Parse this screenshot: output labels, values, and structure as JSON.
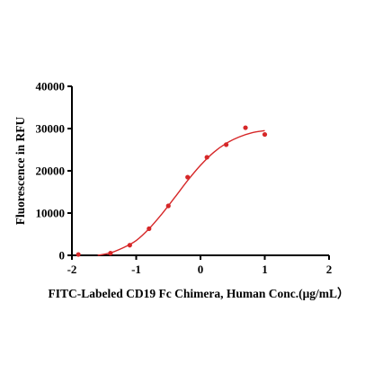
{
  "chart_data": {
    "type": "scatter",
    "title": "",
    "xlabel": "FITC-Labeled CD19 Fc Chimera, Human Conc.(μg/mL）",
    "ylabel": "Fluorescence in RFU",
    "xlim": [
      -2,
      2
    ],
    "ylim": [
      0,
      40000
    ],
    "x_ticks": [
      "-2",
      "-1",
      "0",
      "1",
      "2"
    ],
    "y_ticks": [
      "0",
      "10000",
      "20000",
      "30000",
      "40000"
    ],
    "grid": false,
    "legend": "none",
    "colors": {
      "points": "#d62728",
      "curve": "#d62728",
      "axes": "#000000"
    },
    "series": [
      {
        "points": [
          {
            "x": -1.9,
            "y": 200
          },
          {
            "x": -1.4,
            "y": 500
          },
          {
            "x": -1.1,
            "y": 2400
          },
          {
            "x": -0.8,
            "y": 6300
          },
          {
            "x": -0.5,
            "y": 11700
          },
          {
            "x": -0.2,
            "y": 18500
          },
          {
            "x": 0.1,
            "y": 23200
          },
          {
            "x": 0.4,
            "y": 26200
          },
          {
            "x": 0.7,
            "y": 30200
          },
          {
            "x": 1.0,
            "y": 28600
          }
        ],
        "fit_curve": [
          {
            "x": -1.6,
            "y": 0
          },
          {
            "x": -1.4,
            "y": 600
          },
          {
            "x": -1.2,
            "y": 1800
          },
          {
            "x": -1.0,
            "y": 3500
          },
          {
            "x": -0.8,
            "y": 6300
          },
          {
            "x": -0.6,
            "y": 9800
          },
          {
            "x": -0.4,
            "y": 13700
          },
          {
            "x": -0.2,
            "y": 17700
          },
          {
            "x": 0.0,
            "y": 21300
          },
          {
            "x": 0.2,
            "y": 24300
          },
          {
            "x": 0.4,
            "y": 26500
          },
          {
            "x": 0.6,
            "y": 28000
          },
          {
            "x": 0.8,
            "y": 29000
          },
          {
            "x": 1.0,
            "y": 29500
          }
        ]
      }
    ]
  }
}
